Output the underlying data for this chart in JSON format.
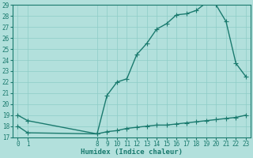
{
  "x_main": [
    0,
    1,
    8,
    9,
    10,
    11,
    12,
    13,
    14,
    15,
    16,
    17,
    18,
    19,
    20,
    21,
    22,
    23
  ],
  "y_main": [
    19.0,
    18.5,
    17.3,
    20.8,
    22.0,
    22.3,
    24.5,
    25.5,
    26.8,
    27.3,
    28.1,
    28.2,
    28.5,
    29.2,
    29.0,
    27.5,
    23.7,
    22.5
  ],
  "x_flat": [
    0,
    1,
    8,
    9,
    10,
    11,
    12,
    13,
    14,
    15,
    16,
    17,
    18,
    19,
    20,
    21,
    22,
    23
  ],
  "y_flat": [
    18.0,
    17.4,
    17.3,
    17.5,
    17.6,
    17.8,
    17.9,
    18.0,
    18.1,
    18.1,
    18.2,
    18.3,
    18.4,
    18.5,
    18.6,
    18.7,
    18.8,
    19.0
  ],
  "line_color": "#1a7a6e",
  "bg_color": "#b2e0dc",
  "grid_color": "#8eccc7",
  "xlabel": "Humidex (Indice chaleur)",
  "ylim": [
    17,
    29
  ],
  "xlim": [
    0,
    23
  ],
  "yticks": [
    17,
    18,
    19,
    20,
    21,
    22,
    23,
    24,
    25,
    26,
    27,
    28,
    29
  ],
  "xticks": [
    0,
    1,
    8,
    9,
    10,
    11,
    12,
    13,
    14,
    15,
    16,
    17,
    18,
    19,
    20,
    21,
    22,
    23
  ],
  "marker": "+",
  "marker_size": 4,
  "linewidth": 1.0,
  "tick_label_fontsize": 5.5,
  "xlabel_fontsize": 6.5
}
